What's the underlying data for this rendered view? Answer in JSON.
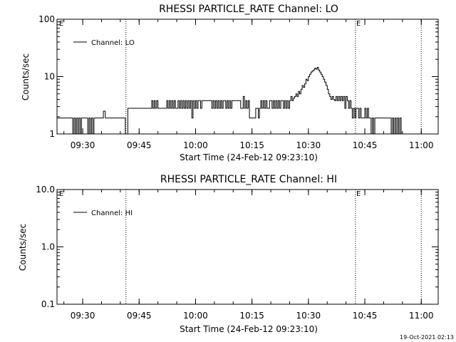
{
  "footer": {
    "timestamp": "19-Oct-2021 02:13"
  },
  "chart_data": [
    {
      "type": "line",
      "title": "RHESSI PARTICLE_RATE Channel: LO",
      "xlabel": "Start Time (24-Feb-12 09:23:10)",
      "ylabel": "Counts/sec",
      "x_ticks": [
        "09:30",
        "09:45",
        "10:00",
        "10:15",
        "10:30",
        "10:45",
        "11:00"
      ],
      "y_ticks": [
        "1",
        "10",
        "100"
      ],
      "ylim": [
        1,
        100
      ],
      "y_scale": "log",
      "xlim": [
        "09:23:10",
        "11:04:30"
      ],
      "legend": "top-left",
      "event_labels": [
        "E",
        "E"
      ],
      "event_lines": [
        "09:41:30",
        "10:42:30",
        "11:00:00"
      ],
      "series": [
        {
          "name": "Channel: LO",
          "x": [
            "09:23:10",
            "09:27:00",
            "09:27:20",
            "09:27:40",
            "09:28:00",
            "09:28:20",
            "09:28:40",
            "09:29:00",
            "09:29:20",
            "09:29:40",
            "09:30:00",
            "09:31:00",
            "09:31:20",
            "09:31:40",
            "09:32:00",
            "09:32:20",
            "09:32:40",
            "09:33:00",
            "09:35:00",
            "09:35:30",
            "09:36:00",
            "09:36:30",
            "09:37:00",
            "09:41:00",
            "09:41:20",
            "09:42:00",
            "09:48:00",
            "09:48:20",
            "09:48:40",
            "09:49:00",
            "09:49:20",
            "09:49:40",
            "09:50:00",
            "09:52:00",
            "09:52:20",
            "09:52:40",
            "09:53:00",
            "09:53:20",
            "09:53:40",
            "09:54:00",
            "09:54:20",
            "09:54:40",
            "09:55:00",
            "09:55:20",
            "09:55:40",
            "09:56:00",
            "09:56:20",
            "09:56:40",
            "09:57:00",
            "09:57:20",
            "09:57:40",
            "09:58:00",
            "09:58:20",
            "09:58:40",
            "09:59:00",
            "09:59:20",
            "09:59:40",
            "10:00:00",
            "10:00:20",
            "10:00:40",
            "10:01:00",
            "10:01:20",
            "10:01:40",
            "10:02:00",
            "10:04:00",
            "10:04:20",
            "10:04:40",
            "10:05:00",
            "10:05:20",
            "10:05:40",
            "10:06:00",
            "10:06:20",
            "10:06:40",
            "10:07:00",
            "10:07:20",
            "10:07:40",
            "10:08:00",
            "10:08:20",
            "10:08:40",
            "10:09:00",
            "10:09:20",
            "10:09:40",
            "10:10:00",
            "10:12:00",
            "10:12:20",
            "10:12:40",
            "10:13:00",
            "10:13:20",
            "10:13:40",
            "10:14:00",
            "10:14:20",
            "10:16:00",
            "10:16:20",
            "10:16:40",
            "10:17:00",
            "10:17:20",
            "10:17:40",
            "10:18:00",
            "10:18:20",
            "10:18:40",
            "10:19:00",
            "10:19:20",
            "10:19:40",
            "10:20:00",
            "10:20:20",
            "10:20:40",
            "10:21:00",
            "10:21:20",
            "10:21:40",
            "10:22:00",
            "10:22:20",
            "10:22:40",
            "10:23:00",
            "10:23:20",
            "10:23:40",
            "10:24:00",
            "10:24:20",
            "10:24:40",
            "10:25:00",
            "10:25:20",
            "10:25:40",
            "10:26:00",
            "10:26:20",
            "10:26:40",
            "10:27:00",
            "10:27:20",
            "10:27:40",
            "10:28:00",
            "10:28:20",
            "10:28:40",
            "10:29:00",
            "10:29:20",
            "10:29:40",
            "10:30:00",
            "10:30:20",
            "10:30:40",
            "10:31:00",
            "10:31:20",
            "10:31:40",
            "10:32:00",
            "10:32:20",
            "10:32:40",
            "10:33:00",
            "10:33:20",
            "10:33:40",
            "10:34:00",
            "10:34:20",
            "10:34:40",
            "10:35:00",
            "10:35:20",
            "10:35:40",
            "10:36:00",
            "10:36:20",
            "10:36:40",
            "10:37:00",
            "10:37:20",
            "10:37:40",
            "10:38:00",
            "10:38:20",
            "10:38:40",
            "10:39:00",
            "10:39:20",
            "10:39:40",
            "10:40:00",
            "10:40:20",
            "10:40:40",
            "10:41:00",
            "10:41:20",
            "10:41:40",
            "10:42:00",
            "10:42:20",
            "10:42:40",
            "10:43:00",
            "10:43:20",
            "10:43:40",
            "10:44:00",
            "10:44:20",
            "10:44:40",
            "10:45:00",
            "10:45:20",
            "10:45:40",
            "10:46:00",
            "10:46:20",
            "10:46:40",
            "10:47:00",
            "10:47:20",
            "10:47:40",
            "10:48:00",
            "10:51:00",
            "10:51:20",
            "10:51:40",
            "10:52:00",
            "10:52:20",
            "10:52:40",
            "10:53:00",
            "10:53:20",
            "10:53:40",
            "10:54:00",
            "10:54:20",
            "10:54:40",
            "10:55:00"
          ],
          "y": [
            1.9,
            1.9,
            1,
            1.9,
            1,
            1.9,
            1,
            1.9,
            1,
            1.9,
            1.9,
            1.9,
            1,
            1.9,
            1,
            1.9,
            1,
            1.9,
            1.9,
            2.5,
            1.9,
            1.9,
            1.9,
            1.9,
            1,
            2.8,
            2.8,
            3.8,
            2.8,
            3.8,
            2.8,
            3.8,
            2.8,
            2.8,
            3.8,
            2.8,
            3.8,
            2.8,
            3.8,
            2.8,
            3.8,
            2.8,
            2.8,
            3.8,
            2.8,
            3.8,
            2.8,
            3.8,
            2.8,
            3.8,
            2.8,
            3.8,
            2.8,
            3.8,
            1.9,
            3.8,
            2.8,
            3.8,
            2.8,
            3.8,
            3.8,
            2.8,
            3.8,
            3.8,
            3.8,
            2.8,
            3.8,
            2.8,
            3.8,
            2.8,
            3.8,
            2.8,
            3.8,
            2.8,
            3.8,
            3.8,
            2.8,
            3.8,
            2.8,
            3.8,
            2.8,
            3.8,
            3.8,
            2.8,
            2.8,
            4.5,
            2.8,
            3.8,
            2.8,
            3.8,
            1.9,
            2.8,
            2.8,
            1.9,
            2.8,
            3.8,
            2.8,
            3.8,
            2.8,
            3.8,
            2.8,
            2.8,
            3.8,
            3.8,
            2.8,
            3.8,
            2.8,
            3.8,
            2.8,
            3.8,
            2.8,
            3.8,
            3.8,
            2.8,
            3.8,
            2.8,
            3.8,
            2.8,
            3.8,
            4.5,
            3.8,
            4.2,
            4.5,
            5,
            4.5,
            5.5,
            5,
            6,
            7,
            6.5,
            7.5,
            9,
            8.5,
            10,
            11,
            12,
            12.5,
            13,
            14,
            13.5,
            14.5,
            13,
            12,
            11,
            10,
            9,
            8,
            7,
            6,
            5,
            4.5,
            4,
            4.5,
            4,
            3.8,
            4.5,
            3.8,
            4.5,
            3.8,
            4.5,
            3.8,
            4.5,
            2.8,
            4.5,
            3.8,
            2.8,
            3.8,
            2.8,
            1.9,
            2.8,
            1.9,
            2.8,
            2.8,
            1.9,
            2.8,
            1.9,
            1.9,
            1.9,
            2.8,
            1.9,
            2.8,
            1.9,
            1.9,
            1,
            1.9,
            1,
            1.9,
            1.9,
            1.9,
            1.9,
            1.9,
            1,
            1.9,
            1,
            1.9,
            1,
            1.9,
            1,
            1.9,
            1,
            1
          ]
        }
      ]
    },
    {
      "type": "line",
      "title": "RHESSI PARTICLE_RATE Channel: HI",
      "xlabel": "Start Time (24-Feb-12 09:23:10)",
      "ylabel": "Counts/sec",
      "x_ticks": [
        "09:30",
        "09:45",
        "10:00",
        "10:15",
        "10:30",
        "10:45",
        "11:00"
      ],
      "y_ticks": [
        "0.1",
        "1.0",
        "10.0"
      ],
      "ylim": [
        0.1,
        10
      ],
      "y_scale": "log",
      "xlim": [
        "09:23:10",
        "11:04:30"
      ],
      "legend": "top-left",
      "event_labels": [
        "E",
        "E"
      ],
      "event_lines": [
        "09:41:30",
        "10:42:30",
        "11:00:00"
      ],
      "series": [
        {
          "name": "Channel: HI",
          "x": [],
          "y": []
        }
      ]
    }
  ]
}
